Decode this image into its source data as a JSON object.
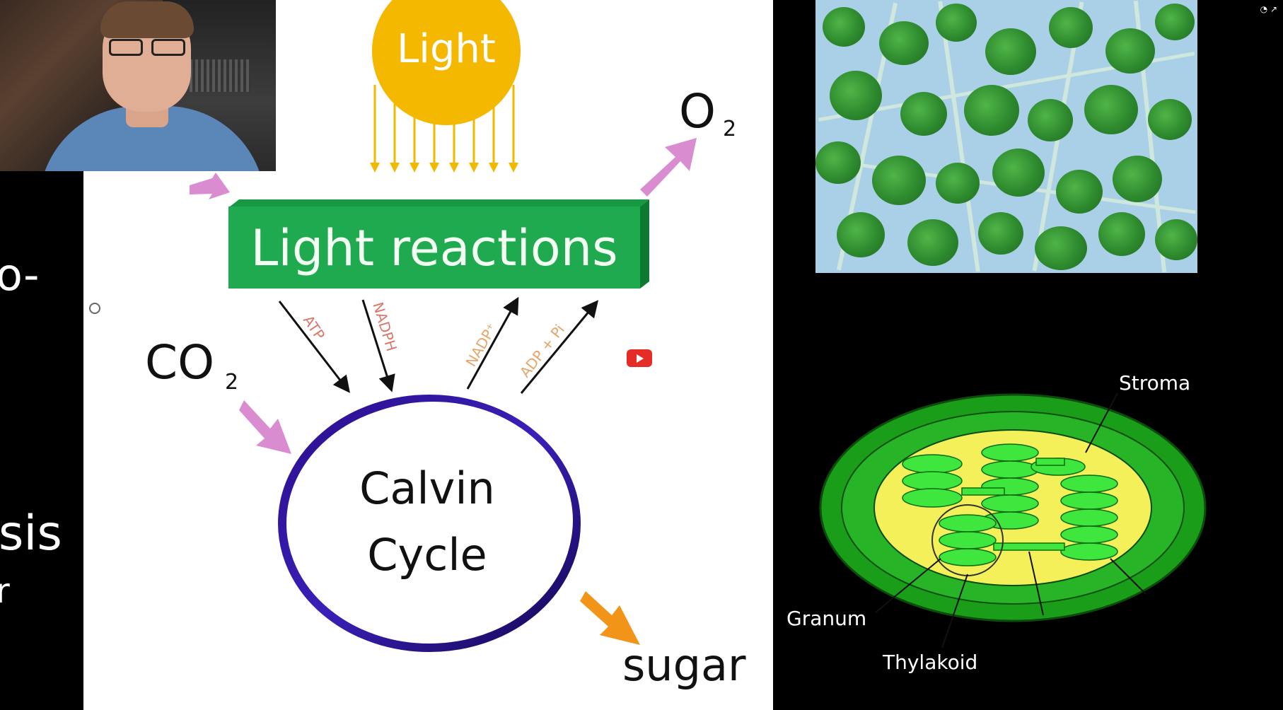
{
  "slide": {
    "sun_label": "Light",
    "light_reactions_label": "Light reactions",
    "o2_label": "O",
    "o2_sub": "2",
    "co2_label": "CO",
    "co2_sub": "2",
    "calvin_line1": "Calvin",
    "calvin_line2": "Cycle",
    "sugar_label": "sugar",
    "arrow_labels": [
      "ATP",
      "NADPH",
      "NADP⁺",
      "ADP + Pi"
    ]
  },
  "left_fragments": {
    "frag1": "o-",
    "frag2": "sis",
    "frag3": "r",
    "frag4": "o"
  },
  "chloroplast": {
    "stroma_label": "Stroma",
    "granum_label": "Granum",
    "thylakoid_label": "Thylakoid"
  },
  "player": {
    "play_icon": "youtube-play-icon",
    "corner_icons": "◔ ↗"
  },
  "colors": {
    "sun": "#f5b800",
    "light_box": "#1faa4f",
    "arrow_pink": "#d98cd0",
    "arrow_orange": "#f29418",
    "calvin_ring": "#2a0f8c",
    "stroma_outer": "#1a9e1a",
    "stroma_yellow": "#f3f05a",
    "thylakoid": "#3ee63e"
  }
}
